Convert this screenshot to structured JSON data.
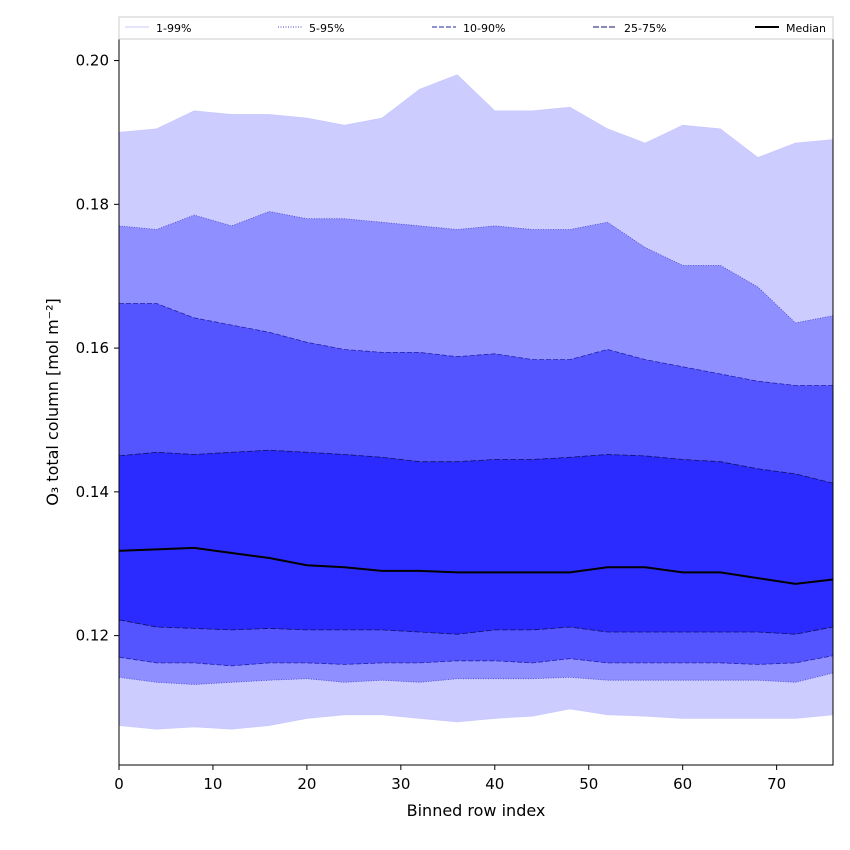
{
  "chart_data": {
    "type": "area",
    "xlabel": "Binned row index",
    "ylabel": "O₃ total column [mol m⁻²]",
    "xlim": [
      0,
      76
    ],
    "ylim": [
      0.102,
      0.203
    ],
    "x_ticks": [
      0,
      10,
      20,
      30,
      40,
      50,
      60,
      70
    ],
    "x_tick_labels": [
      "0",
      "10",
      "20",
      "30",
      "40",
      "50",
      "60",
      "70"
    ],
    "y_ticks": [
      0.12,
      0.14,
      0.16,
      0.18,
      0.2
    ],
    "y_tick_labels": [
      "0.12",
      "0.14",
      "0.16",
      "0.18",
      "0.20"
    ],
    "grid": false,
    "legend_position": "top",
    "x_sample": [
      0,
      4,
      8,
      12,
      16,
      20,
      24,
      28,
      32,
      36,
      40,
      44,
      48,
      52,
      56,
      60,
      64,
      68,
      72,
      76
    ],
    "bands": [
      {
        "name": "1-99%",
        "fill": "#ccccff",
        "line": "#c8c8ff",
        "dash": "none",
        "lower": [
          0.1075,
          0.107,
          0.1073,
          0.107,
          0.1075,
          0.1085,
          0.109,
          0.109,
          0.1085,
          0.108,
          0.1085,
          0.1088,
          0.1098,
          0.109,
          0.1088,
          0.1085,
          0.1085,
          0.1085,
          0.1085,
          0.109
        ],
        "upper": [
          0.19,
          0.1905,
          0.193,
          0.1925,
          0.1925,
          0.192,
          0.191,
          0.192,
          0.196,
          0.198,
          0.193,
          0.193,
          0.1935,
          0.1905,
          0.1885,
          0.191,
          0.1905,
          0.1865,
          0.1885,
          0.189
        ]
      },
      {
        "name": "5-95%",
        "fill": "#8f8fff",
        "line": "#4444cc",
        "dash": "1,1.5",
        "lower": [
          0.1142,
          0.1135,
          0.1132,
          0.1135,
          0.1138,
          0.114,
          0.1135,
          0.1138,
          0.1135,
          0.114,
          0.114,
          0.114,
          0.1142,
          0.1138,
          0.1138,
          0.1138,
          0.1138,
          0.1138,
          0.1135,
          0.1148
        ],
        "upper": [
          0.177,
          0.1765,
          0.1785,
          0.177,
          0.179,
          0.178,
          0.178,
          0.1775,
          0.177,
          0.1765,
          0.177,
          0.1765,
          0.1765,
          0.1775,
          0.174,
          0.1715,
          0.1715,
          0.1685,
          0.1635,
          0.1645
        ]
      },
      {
        "name": "10-90%",
        "fill": "#5555ff",
        "line": "#2222aa",
        "dash": "5,2",
        "lower": [
          0.117,
          0.1162,
          0.1162,
          0.1158,
          0.1162,
          0.1162,
          0.116,
          0.1162,
          0.1162,
          0.1165,
          0.1165,
          0.1162,
          0.1168,
          0.1162,
          0.1162,
          0.1162,
          0.1162,
          0.116,
          0.1162,
          0.1172
        ],
        "upper": [
          0.1662,
          0.1662,
          0.1642,
          0.1632,
          0.1622,
          0.1608,
          0.1598,
          0.1594,
          0.1594,
          0.1588,
          0.1592,
          0.1584,
          0.1584,
          0.1598,
          0.1584,
          0.1574,
          0.1564,
          0.1554,
          0.1548,
          0.1548
        ]
      },
      {
        "name": "25-75%",
        "fill": "#2b2bff",
        "line": "#11116a",
        "dash": "6,2",
        "lower": [
          0.1222,
          0.1212,
          0.121,
          0.1208,
          0.121,
          0.1208,
          0.1208,
          0.1208,
          0.1205,
          0.1202,
          0.1208,
          0.1208,
          0.1212,
          0.1205,
          0.1205,
          0.1205,
          0.1205,
          0.1205,
          0.1202,
          0.1212
        ],
        "upper": [
          0.145,
          0.1455,
          0.1452,
          0.1455,
          0.1458,
          0.1455,
          0.1452,
          0.1448,
          0.1442,
          0.1442,
          0.1445,
          0.1445,
          0.1448,
          0.1452,
          0.145,
          0.1445,
          0.1442,
          0.1432,
          0.1425,
          0.1412
        ]
      }
    ],
    "median": {
      "name": "Median",
      "color": "#000000",
      "values": [
        0.1318,
        0.132,
        0.1322,
        0.1315,
        0.1308,
        0.1298,
        0.1295,
        0.129,
        0.129,
        0.1288,
        0.1288,
        0.1288,
        0.1288,
        0.1295,
        0.1295,
        0.1288,
        0.1288,
        0.128,
        0.1272,
        0.1278
      ]
    },
    "legend": [
      "1-99%",
      "5-95%",
      "10-90%",
      "25-75%",
      "Median"
    ]
  }
}
